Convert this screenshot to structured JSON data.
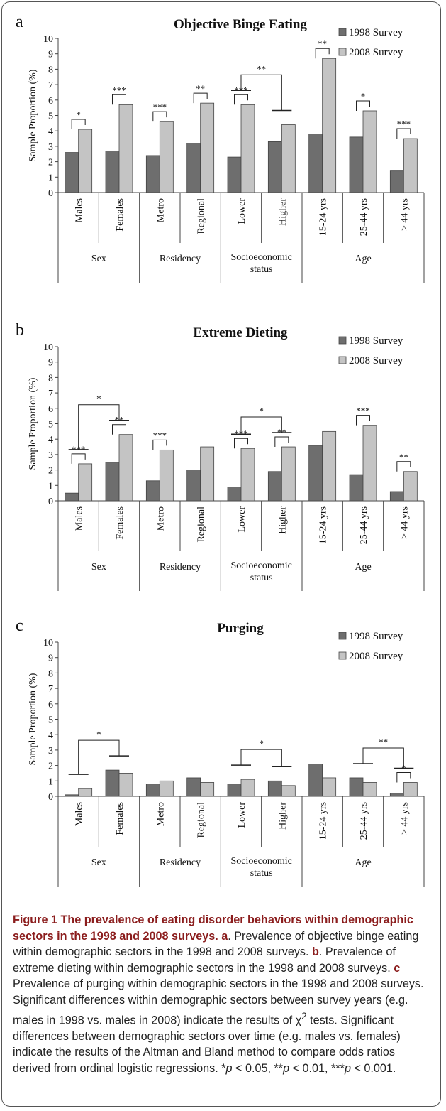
{
  "chart_data": [
    {
      "type": "bar",
      "panel_letter": "a",
      "title": "Objective Binge Eating",
      "ylabel": "Sample Proportion (%)",
      "ylim": [
        0,
        10
      ],
      "yticks": [
        0,
        1,
        2,
        3,
        4,
        5,
        6,
        7,
        8,
        9,
        10
      ],
      "legend_position": "top-right",
      "categories": [
        "Males",
        "Females",
        "Metro",
        "Regional",
        "Lower",
        "Higher",
        "15-24 yrs",
        "25-44 yrs",
        "> 44 yrs"
      ],
      "groups": [
        {
          "label": "Sex",
          "span": 2
        },
        {
          "label": "Residency",
          "span": 2
        },
        {
          "label": "Socioeconomic status",
          "span": 2
        },
        {
          "label": "Age",
          "span": 3
        }
      ],
      "series": [
        {
          "name": "1998 Survey",
          "color": "#6e6e6e",
          "values": [
            2.6,
            2.7,
            2.4,
            3.2,
            2.3,
            3.3,
            3.8,
            3.6,
            1.4
          ]
        },
        {
          "name": "2008 Survey",
          "color": "#c4c4c4",
          "values": [
            4.1,
            5.7,
            4.6,
            5.8,
            5.7,
            4.4,
            8.7,
            5.3,
            3.5
          ]
        }
      ],
      "annotations": [
        {
          "type": "within",
          "category": 0,
          "label": "*"
        },
        {
          "type": "within",
          "category": 1,
          "label": "***"
        },
        {
          "type": "within",
          "category": 2,
          "label": "***"
        },
        {
          "type": "within",
          "category": 3,
          "label": "**"
        },
        {
          "type": "within",
          "category": 4,
          "label": "***"
        },
        {
          "type": "within",
          "category": 6,
          "label": "**"
        },
        {
          "type": "within",
          "category": 7,
          "label": "*"
        },
        {
          "type": "within",
          "category": 8,
          "label": "***"
        },
        {
          "type": "between",
          "from": 4,
          "to": 5,
          "label": "**"
        }
      ]
    },
    {
      "type": "bar",
      "panel_letter": "b",
      "title": "Extreme Dieting",
      "ylabel": "Sample Proportion (%)",
      "ylim": [
        0,
        10
      ],
      "yticks": [
        0,
        1,
        2,
        3,
        4,
        5,
        6,
        7,
        8,
        9,
        10
      ],
      "legend_position": "top-right",
      "categories": [
        "Males",
        "Females",
        "Metro",
        "Regional",
        "Lower",
        "Higher",
        "15-24 yrs",
        "25-44 yrs",
        "> 44 yrs"
      ],
      "groups": [
        {
          "label": "Sex",
          "span": 2
        },
        {
          "label": "Residency",
          "span": 2
        },
        {
          "label": "Socioeconomic status",
          "span": 2
        },
        {
          "label": "Age",
          "span": 3
        }
      ],
      "series": [
        {
          "name": "1998 Survey",
          "color": "#6e6e6e",
          "values": [
            0.5,
            2.5,
            1.3,
            2.0,
            0.9,
            1.9,
            3.6,
            1.7,
            0.6
          ]
        },
        {
          "name": "2008 Survey",
          "color": "#c4c4c4",
          "values": [
            2.4,
            4.3,
            3.3,
            3.5,
            3.4,
            3.5,
            4.5,
            4.9,
            1.9
          ]
        }
      ],
      "annotations": [
        {
          "type": "within",
          "category": 0,
          "label": "***"
        },
        {
          "type": "within",
          "category": 1,
          "label": "**"
        },
        {
          "type": "within",
          "category": 2,
          "label": "***"
        },
        {
          "type": "within",
          "category": 4,
          "label": "***"
        },
        {
          "type": "within",
          "category": 5,
          "label": "**"
        },
        {
          "type": "within",
          "category": 7,
          "label": "***"
        },
        {
          "type": "within",
          "category": 8,
          "label": "**"
        },
        {
          "type": "between",
          "from": 0,
          "to": 1,
          "label": "*"
        },
        {
          "type": "between",
          "from": 4,
          "to": 5,
          "label": "*"
        }
      ]
    },
    {
      "type": "bar",
      "panel_letter": "c",
      "title": "Purging",
      "ylabel": "Sample Proportion (%)",
      "ylim": [
        0,
        10
      ],
      "yticks": [
        0,
        1,
        2,
        3,
        4,
        5,
        6,
        7,
        8,
        9,
        10
      ],
      "legend_position": "top-right",
      "categories": [
        "Males",
        "Females",
        "Metro",
        "Regional",
        "Lower",
        "Higher",
        "15-24 yrs",
        "25-44 yrs",
        "> 44 yrs"
      ],
      "groups": [
        {
          "label": "Sex",
          "span": 2
        },
        {
          "label": "Residency",
          "span": 2
        },
        {
          "label": "Socioeconomic status",
          "span": 2
        },
        {
          "label": "Age",
          "span": 3
        }
      ],
      "series": [
        {
          "name": "1998 Survey",
          "color": "#6e6e6e",
          "values": [
            0.1,
            1.7,
            0.8,
            1.2,
            0.8,
            1.0,
            2.1,
            1.2,
            0.2
          ]
        },
        {
          "name": "2008 Survey",
          "color": "#c4c4c4",
          "values": [
            0.5,
            1.5,
            1.0,
            0.9,
            1.1,
            0.7,
            1.2,
            0.9,
            0.9
          ]
        }
      ],
      "annotations": [
        {
          "type": "within",
          "category": 8,
          "label": "*"
        },
        {
          "type": "between",
          "from": 0,
          "to": 1,
          "label": "*"
        },
        {
          "type": "between",
          "from": 4,
          "to": 5,
          "label": "*"
        },
        {
          "type": "between",
          "from": 7,
          "to": 8,
          "label": "**"
        }
      ]
    }
  ],
  "caption": {
    "figure_label": "Figure 1",
    "figure_title": "The prevalence of eating disorder behaviors within demographic sectors in the 1998 and 2008 surveys.",
    "part_a_label": "a",
    "part_a_text": ". Prevalence of objective binge eating within demographic sectors in the 1998 and 2008 surveys. ",
    "part_b_label": "b",
    "part_b_text": ". Prevalence of extreme dieting within demographic sectors in the 1998 and 2008 surveys. ",
    "part_c_label": "c",
    "part_c_text": " Prevalence of purging within demographic sectors in the 1998 and 2008 surveys. Significant differences within demographic sectors between survey years (e.g. males in 1998 vs. males in 2008) indicate the results of χ",
    "chi_sup": "2",
    "part_c_text2": " tests. Significant differences between demographic sectors over time (e.g. males vs. females) indicate the results of the Altman and Bland method to compare odds ratios derived from ordinal logistic regressions. *",
    "p1_var": "p",
    "p1_text": " < 0.05, **",
    "p2_var": "p",
    "p2_text": " < 0.01, ***",
    "p3_var": "p",
    "p3_text": " < 0.001."
  }
}
